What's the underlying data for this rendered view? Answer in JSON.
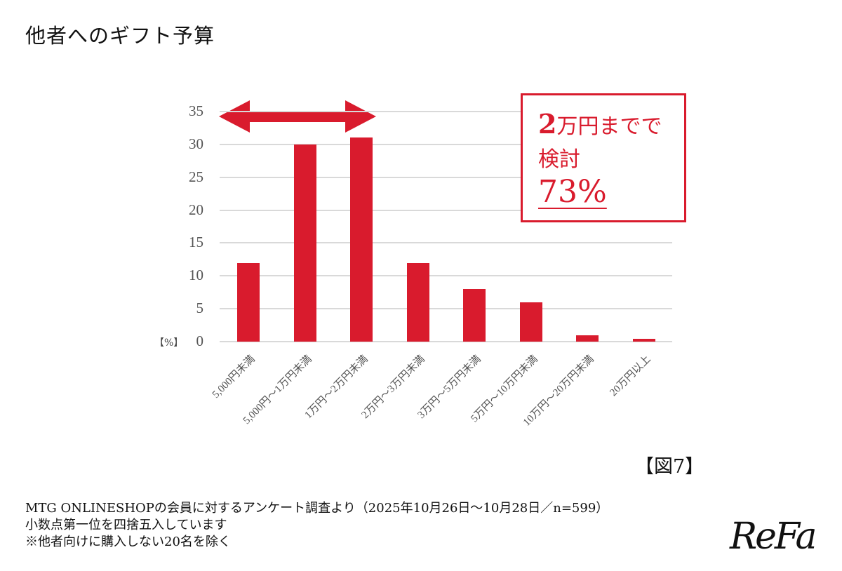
{
  "title": "他者へのギフト予算",
  "figure_label": "【図7】",
  "callout": {
    "line1_number": "2",
    "line1_text": "万円までで",
    "line2": "検討",
    "line3": "73%"
  },
  "unit_label": "【%】",
  "footnotes": [
    "MTG ONLINESHOPの会員に対するアンケート調査より（2025年10月26日〜10月28日／n=599）",
    "小数点第一位を四捨五入しています",
    "※他者向けに購入しない20名を除く"
  ],
  "logo": "ReFa",
  "colors": {
    "bar": "#d91b2d",
    "grid": "#d9d9d9",
    "accent": "#d91b2d"
  },
  "chart_data": {
    "type": "bar",
    "title": "他者へのギフト予算",
    "xlabel": "",
    "ylabel": "%",
    "ylim": [
      0,
      35
    ],
    "yticks": [
      0,
      5,
      10,
      15,
      20,
      25,
      30,
      35
    ],
    "grid": true,
    "legend": null,
    "categories": [
      "5,000円未満",
      "5,000円〜1万円未満",
      "1万円〜2万円未満",
      "2万円〜3万円未満",
      "3万円〜5万円未満",
      "5万円〜10万円未満",
      "10万円〜20万円未満",
      "20万円以上"
    ],
    "values": [
      12,
      30,
      31,
      12,
      8,
      6,
      1,
      0.4
    ],
    "annotations": [
      {
        "type": "double-arrow",
        "span": [
          "5,000円未満",
          "1万円〜2万円未満"
        ]
      },
      {
        "type": "callout",
        "text": "2万円までで検討 73%"
      }
    ]
  }
}
